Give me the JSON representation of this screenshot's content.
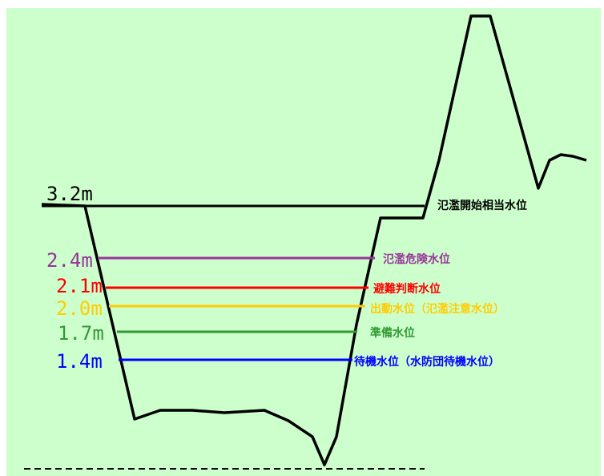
{
  "background_color": "#ccffcc",
  "levels": [
    {
      "value": "3.2m",
      "label": "氾濫開始相当水位",
      "color": "#000000"
    },
    {
      "value": "2.4m",
      "label": "氾濫危険水位",
      "color": "#993399"
    },
    {
      "value": "2.1m",
      "label": "避難判断水位",
      "color": "#ff0000"
    },
    {
      "value": "2.0m",
      "label": "出動水位（氾濫注意水位）",
      "color": "#ffcc00"
    },
    {
      "value": "1.7m",
      "label": "準備水位",
      "color": "#339933"
    },
    {
      "value": "1.4m",
      "label": "待機水位（水防団待機水位）",
      "color": "#0000ff"
    }
  ]
}
